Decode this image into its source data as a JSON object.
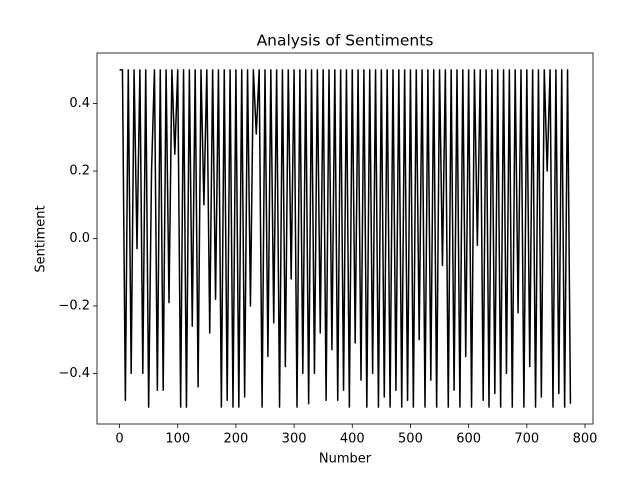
{
  "chart_data": {
    "type": "line",
    "title": "Analysis of Sentiments",
    "x_label": "Number",
    "y_label": "Sentiment",
    "color": "#000000",
    "x": [
      0,
      5,
      10,
      15,
      20,
      25,
      30,
      35,
      40,
      45,
      50,
      55,
      60,
      65,
      70,
      75,
      80,
      85,
      90,
      95,
      100,
      105,
      110,
      115,
      120,
      125,
      130,
      135,
      140,
      145,
      150,
      155,
      160,
      165,
      170,
      175,
      180,
      185,
      190,
      195,
      200,
      205,
      210,
      215,
      220,
      225,
      230,
      235,
      240,
      245,
      250,
      255,
      260,
      265,
      270,
      275,
      280,
      285,
      290,
      295,
      300,
      305,
      310,
      315,
      320,
      325,
      330,
      335,
      340,
      345,
      350,
      355,
      360,
      365,
      370,
      375,
      380,
      385,
      390,
      395,
      400,
      405,
      410,
      415,
      420,
      425,
      430,
      435,
      440,
      445,
      450,
      455,
      460,
      465,
      470,
      475,
      480,
      485,
      490,
      495,
      500,
      505,
      510,
      515,
      520,
      525,
      530,
      535,
      540,
      545,
      550,
      555,
      560,
      565,
      570,
      575,
      580,
      585,
      590,
      595,
      600,
      605,
      610,
      615,
      620,
      625,
      630,
      635,
      640,
      645,
      650,
      655,
      660,
      665,
      670,
      675,
      680,
      685,
      690,
      695,
      700,
      705,
      710,
      715,
      720,
      725,
      730,
      735,
      740,
      745,
      750,
      755,
      760,
      765,
      770,
      775
    ],
    "values": [
      0.5,
      0.5,
      -0.48,
      0.5,
      -0.4,
      0.5,
      -0.03,
      0.5,
      -0.4,
      0.5,
      -0.5,
      0.2,
      0.5,
      -0.45,
      0.5,
      -0.45,
      0.5,
      -0.19,
      0.5,
      0.25,
      0.5,
      -0.5,
      0.5,
      -0.5,
      0.5,
      -0.26,
      0.5,
      -0.44,
      0.5,
      0.1,
      0.5,
      -0.28,
      0.5,
      -0.18,
      0.5,
      -0.5,
      0.5,
      -0.48,
      0.5,
      -0.5,
      0.5,
      -0.5,
      0.5,
      -0.47,
      0.5,
      -0.2,
      0.5,
      0.31,
      0.5,
      -0.5,
      0.5,
      -0.35,
      0.5,
      -0.25,
      0.5,
      -0.5,
      0.5,
      -0.38,
      0.5,
      -0.12,
      0.5,
      -0.5,
      0.5,
      -0.4,
      0.5,
      -0.49,
      0.5,
      -0.4,
      0.5,
      -0.28,
      0.5,
      -0.48,
      0.5,
      -0.33,
      0.5,
      -0.48,
      0.5,
      -0.45,
      0.5,
      -0.5,
      0.5,
      -0.31,
      0.5,
      -0.42,
      0.5,
      -0.5,
      0.5,
      -0.4,
      0.5,
      -0.5,
      0.5,
      -0.47,
      0.5,
      -0.5,
      0.5,
      -0.45,
      0.5,
      -0.5,
      0.5,
      -0.48,
      0.5,
      -0.5,
      0.5,
      -0.3,
      0.5,
      -0.5,
      0.5,
      -0.42,
      0.5,
      -0.5,
      0.5,
      -0.08,
      0.5,
      -0.5,
      0.5,
      -0.45,
      0.5,
      -0.5,
      0.5,
      -0.35,
      0.5,
      -0.5,
      0.5,
      -0.02,
      0.5,
      -0.48,
      0.5,
      -0.5,
      0.5,
      -0.46,
      0.5,
      -0.5,
      0.5,
      -0.4,
      0.5,
      -0.5,
      0.5,
      -0.22,
      0.5,
      -0.5,
      0.5,
      -0.38,
      0.5,
      -0.5,
      0.5,
      -0.47,
      0.5,
      0.2,
      0.5,
      -0.5,
      0.5,
      -0.46,
      0.5,
      -0.5,
      0.5,
      -0.49
    ],
    "xlim": [
      -38.75,
      813.75
    ],
    "ylim": [
      -0.55,
      0.55
    ],
    "xticks": [
      0,
      100,
      200,
      300,
      400,
      500,
      600,
      700,
      800
    ],
    "yticks": [
      {
        "value": -0.4,
        "label": "−0.4"
      },
      {
        "value": -0.2,
        "label": "−0.2"
      },
      {
        "value": 0,
        "label": "0.0"
      },
      0.2,
      0.4
    ]
  }
}
